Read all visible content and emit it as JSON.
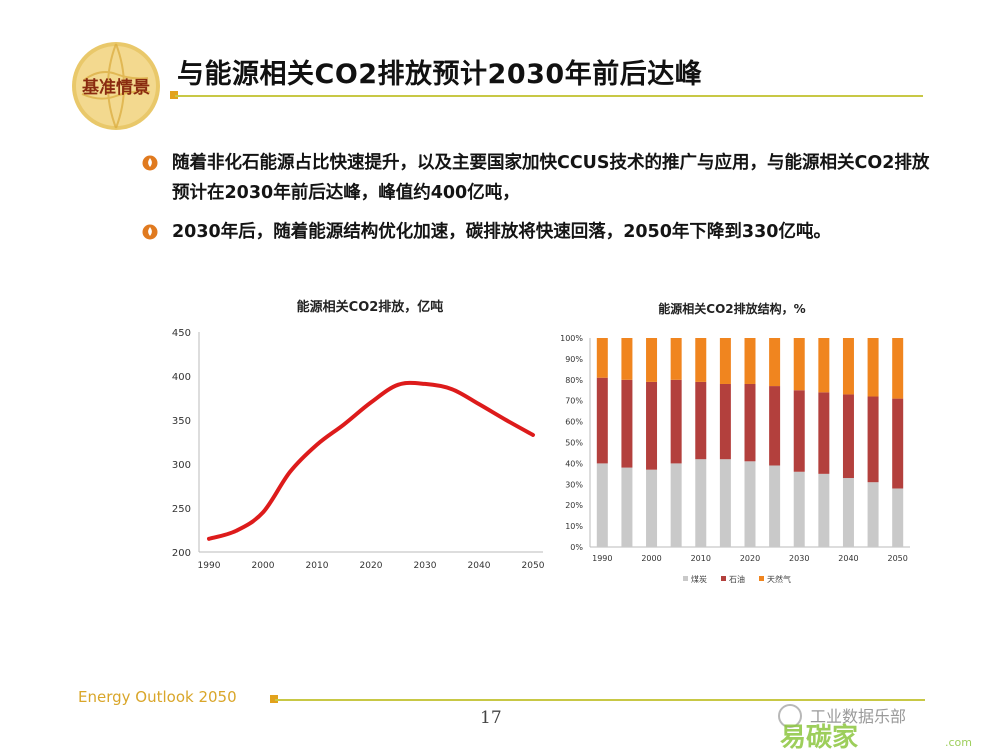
{
  "slide": {
    "section_badge": "基准情景",
    "title": "与能源相关CO2排放预计2030年前后达峰",
    "page_number": "17",
    "footer_label": "Energy Outlook 2050",
    "watermark_text": "工业数据乐部",
    "watermark_brand": "易碳家",
    "watermark_domain": ".com"
  },
  "bullets": [
    {
      "text": "随着非化石能源占比快速提升，以及主要国家加快CCUS技术的推广与应用，与能源相关CO2排放预计在2030年前后达峰，峰值约400亿吨，",
      "icon": "flame-bullet-icon"
    },
    {
      "text": "2030年后，随着能源结构优化加速，碳排放将快速回落，2050年下降到330亿吨。",
      "icon": "flame-bullet-icon"
    }
  ],
  "colors": {
    "accent_orange": "#e2a21c",
    "rule_olive": "#c8c845",
    "line_red": "#dd1b1b",
    "coal": "#c9c9c9",
    "oil": "#b3403d",
    "gas": "#f0851f"
  },
  "chart_data": [
    {
      "type": "line",
      "title": "能源相关CO2排放，亿吨",
      "x": [
        1990,
        1995,
        2000,
        2005,
        2010,
        2015,
        2020,
        2025,
        2030,
        2035,
        2040,
        2045,
        2050
      ],
      "series": [
        {
          "values": [
            215,
            224,
            245,
            291,
            322,
            345,
            370,
            390,
            391,
            385,
            368,
            350,
            333
          ]
        }
      ],
      "x_ticks": [
        "1990",
        "2000",
        "2010",
        "2020",
        "2030",
        "2040",
        "2050"
      ],
      "y_ticks": [
        "200",
        "250",
        "300",
        "350",
        "400",
        "450"
      ],
      "ylim": [
        200,
        450
      ],
      "grid": false
    },
    {
      "type": "bar",
      "stacked": true,
      "title": "能源相关CO2排放结构，%",
      "categories": [
        "1990",
        "1995",
        "2000",
        "2005",
        "2010",
        "2015",
        "2020",
        "2025",
        "2030",
        "2035",
        "2040",
        "2045",
        "2050"
      ],
      "x_ticks": [
        "1990",
        "2000",
        "2010",
        "2020",
        "2030",
        "2040",
        "2050"
      ],
      "y_ticks": [
        "0%",
        "10%",
        "20%",
        "30%",
        "40%",
        "50%",
        "60%",
        "70%",
        "80%",
        "90%",
        "100%"
      ],
      "ylim": [
        0,
        100
      ],
      "series": [
        {
          "name": "煤炭",
          "values": [
            40,
            38,
            37,
            40,
            42,
            42,
            41,
            39,
            36,
            35,
            33,
            31,
            28
          ]
        },
        {
          "name": "石油",
          "values": [
            41,
            42,
            42,
            40,
            37,
            36,
            37,
            38,
            39,
            39,
            40,
            41,
            43
          ]
        },
        {
          "name": "天然气",
          "values": [
            19,
            20,
            21,
            20,
            21,
            22,
            22,
            23,
            25,
            26,
            27,
            28,
            29
          ]
        }
      ],
      "legend": "bottom"
    }
  ]
}
